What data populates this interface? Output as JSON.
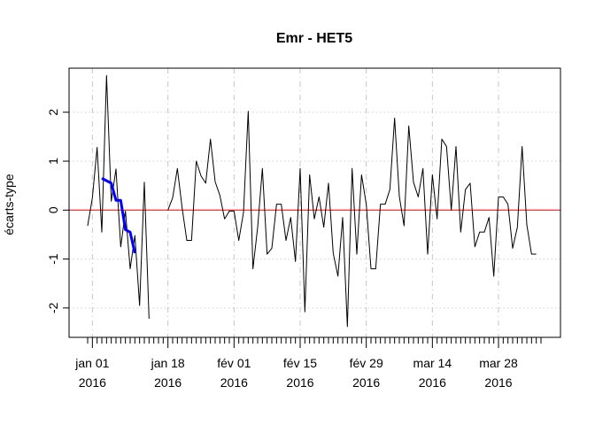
{
  "chart_data": {
    "type": "line",
    "title": "Emr - HET5",
    "xlabel": "",
    "ylabel": "écarts-type",
    "ylim": [
      -2.6,
      2.9
    ],
    "yticks": [
      -2,
      -1,
      0,
      1,
      2
    ],
    "x_start_date": "2015-12-29",
    "x_end_date": "2016-04-03",
    "xticks": [
      {
        "date": "2015-12-30",
        "label1": "jan 01",
        "label2": "2016"
      },
      {
        "date": "2016-01-15",
        "label1": "jan 18",
        "label2": "2016"
      },
      {
        "date": "2016-01-29",
        "label1": "fév 01",
        "label2": "2016"
      },
      {
        "date": "2016-02-12",
        "label1": "fév 15",
        "label2": "2016"
      },
      {
        "date": "2016-02-26",
        "label1": "fév 29",
        "label2": "2016"
      },
      {
        "date": "2016-03-11",
        "label1": "mar 14",
        "label2": "2016"
      },
      {
        "date": "2016-03-25",
        "label1": "mar 28",
        "label2": "2016"
      }
    ],
    "reference_line": {
      "y": 0,
      "color": "#ff0000"
    },
    "grid": true,
    "series": [
      {
        "role": "main",
        "color": "#000000",
        "points": [
          [
            0,
            -0.32
          ],
          [
            1,
            0.25
          ],
          [
            2,
            1.28
          ],
          [
            3,
            -0.45
          ],
          [
            4,
            2.75
          ],
          [
            5,
            0.18
          ],
          [
            6,
            0.84
          ],
          [
            7,
            -0.75
          ],
          [
            8,
            -0.02
          ],
          [
            9,
            -1.2
          ],
          [
            10,
            -0.52
          ],
          [
            11,
            -1.95
          ],
          [
            12,
            0.57
          ],
          [
            13,
            -2.22
          ],
          [
            17,
            0.0
          ],
          [
            18,
            0.25
          ],
          [
            19,
            0.85
          ],
          [
            20,
            0.05
          ],
          [
            21,
            -0.62
          ],
          [
            22,
            -0.62
          ],
          [
            23,
            1.0
          ],
          [
            24,
            0.7
          ],
          [
            25,
            0.55
          ],
          [
            26,
            1.45
          ],
          [
            27,
            0.58
          ],
          [
            28,
            0.3
          ],
          [
            29,
            -0.18
          ],
          [
            30,
            -0.02
          ],
          [
            31,
            -0.02
          ],
          [
            32,
            -0.62
          ],
          [
            33,
            -0.05
          ],
          [
            34,
            2.02
          ],
          [
            35,
            -1.2
          ],
          [
            36,
            -0.35
          ],
          [
            37,
            0.85
          ],
          [
            38,
            -0.9
          ],
          [
            39,
            -0.78
          ],
          [
            40,
            0.12
          ],
          [
            41,
            0.12
          ],
          [
            42,
            -0.62
          ],
          [
            43,
            -0.15
          ],
          [
            44,
            -1.05
          ],
          [
            45,
            0.85
          ],
          [
            46,
            -2.08
          ],
          [
            47,
            0.72
          ],
          [
            48,
            -0.18
          ],
          [
            49,
            0.27
          ],
          [
            50,
            -0.35
          ],
          [
            51,
            0.55
          ],
          [
            52,
            -0.88
          ],
          [
            53,
            -1.35
          ],
          [
            54,
            -0.15
          ],
          [
            55,
            -2.38
          ],
          [
            56,
            0.85
          ],
          [
            57,
            -0.9
          ],
          [
            58,
            0.72
          ],
          [
            59,
            0.12
          ],
          [
            60,
            -1.2
          ],
          [
            61,
            -1.2
          ],
          [
            62,
            0.12
          ],
          [
            63,
            0.12
          ],
          [
            64,
            0.42
          ],
          [
            65,
            1.88
          ],
          [
            66,
            0.28
          ],
          [
            67,
            -0.32
          ],
          [
            68,
            1.72
          ],
          [
            69,
            0.57
          ],
          [
            70,
            0.27
          ],
          [
            71,
            0.85
          ],
          [
            72,
            -0.9
          ],
          [
            73,
            0.72
          ],
          [
            74,
            -0.18
          ],
          [
            75,
            1.45
          ],
          [
            76,
            1.3
          ],
          [
            77,
            0.0
          ],
          [
            78,
            1.3
          ],
          [
            79,
            -0.45
          ],
          [
            80,
            0.42
          ],
          [
            81,
            0.55
          ],
          [
            82,
            -0.75
          ],
          [
            83,
            -0.45
          ],
          [
            84,
            -0.45
          ],
          [
            85,
            -0.15
          ],
          [
            86,
            -1.35
          ],
          [
            87,
            0.27
          ],
          [
            88,
            0.27
          ],
          [
            89,
            0.12
          ],
          [
            90,
            -0.78
          ],
          [
            91,
            -0.35
          ],
          [
            92,
            1.3
          ],
          [
            93,
            -0.3
          ],
          [
            94,
            -0.9
          ],
          [
            95,
            -0.9
          ]
        ]
      },
      {
        "role": "overlay",
        "color": "#0000ff",
        "points": [
          [
            3,
            0.65
          ],
          [
            4,
            0.6
          ],
          [
            5,
            0.55
          ],
          [
            6,
            0.2
          ],
          [
            7,
            0.2
          ],
          [
            8,
            -0.4
          ],
          [
            9,
            -0.45
          ],
          [
            10,
            -0.88
          ]
        ]
      }
    ]
  }
}
